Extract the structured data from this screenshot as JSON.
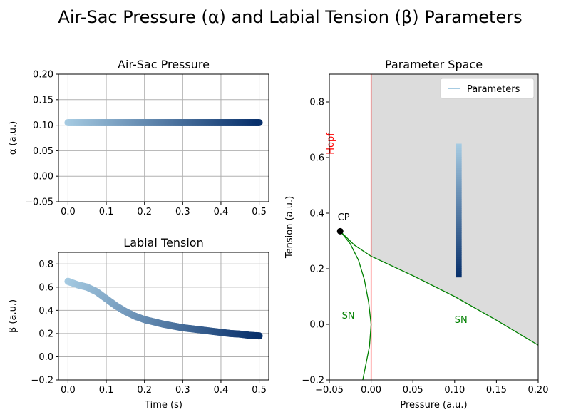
{
  "title": "Air-Sac Pressure (α) and Labial Tension (β) Parameters",
  "colors": {
    "light_blue": "#a6cbe2",
    "dark_blue": "#08306b",
    "hopf": "#ff0000",
    "sn": "#008000",
    "region": "#dcdcdc",
    "grid": "#b0b0b0"
  },
  "chart_data": [
    {
      "type": "scatter",
      "title": "Air-Sac Pressure",
      "xlabel": "",
      "ylabel": "α (a.u.)",
      "xlim": [
        -0.025,
        0.525
      ],
      "ylim": [
        -0.05,
        0.2
      ],
      "xticks": [
        0.0,
        0.1,
        0.2,
        0.3,
        0.4,
        0.5
      ],
      "xtick_labels": [
        "0.0",
        "0.1",
        "0.2",
        "0.3",
        "0.4",
        "0.5"
      ],
      "yticks": [
        -0.05,
        0.0,
        0.05,
        0.1,
        0.15,
        0.2
      ],
      "ytick_labels": [
        "−0.05",
        "0.00",
        "0.05",
        "0.10",
        "0.15",
        "0.20"
      ],
      "grid": true,
      "colormap": "Blues",
      "x": [
        0.0,
        0.025,
        0.05,
        0.075,
        0.1,
        0.125,
        0.15,
        0.175,
        0.2,
        0.225,
        0.25,
        0.275,
        0.3,
        0.325,
        0.35,
        0.375,
        0.4,
        0.425,
        0.45,
        0.475,
        0.5
      ],
      "y": [
        0.105,
        0.105,
        0.105,
        0.105,
        0.105,
        0.105,
        0.105,
        0.105,
        0.105,
        0.105,
        0.105,
        0.105,
        0.105,
        0.105,
        0.105,
        0.105,
        0.105,
        0.105,
        0.105,
        0.105,
        0.105
      ]
    },
    {
      "type": "scatter",
      "title": "Labial Tension",
      "xlabel": "Time (s)",
      "ylabel": "β (a.u.)",
      "xlim": [
        -0.025,
        0.525
      ],
      "ylim": [
        -0.2,
        0.9
      ],
      "xticks": [
        0.0,
        0.1,
        0.2,
        0.3,
        0.4,
        0.5
      ],
      "xtick_labels": [
        "0.0",
        "0.1",
        "0.2",
        "0.3",
        "0.4",
        "0.5"
      ],
      "yticks": [
        -0.2,
        0.0,
        0.2,
        0.4,
        0.6,
        0.8
      ],
      "ytick_labels": [
        "−0.2",
        "0.0",
        "0.2",
        "0.4",
        "0.6",
        "0.8"
      ],
      "grid": true,
      "colormap": "Blues",
      "x": [
        0.0,
        0.025,
        0.05,
        0.075,
        0.1,
        0.125,
        0.15,
        0.175,
        0.2,
        0.225,
        0.25,
        0.275,
        0.3,
        0.325,
        0.35,
        0.375,
        0.4,
        0.425,
        0.45,
        0.475,
        0.5
      ],
      "y": [
        0.65,
        0.62,
        0.6,
        0.56,
        0.5,
        0.44,
        0.39,
        0.35,
        0.32,
        0.3,
        0.28,
        0.265,
        0.25,
        0.24,
        0.23,
        0.22,
        0.21,
        0.2,
        0.195,
        0.185,
        0.18
      ]
    },
    {
      "type": "line",
      "title": "Parameter Space",
      "xlabel": "Pressure (a.u.)",
      "ylabel": "Tension (a.u.)",
      "xlim": [
        -0.05,
        0.2
      ],
      "ylim": [
        -0.2,
        0.9
      ],
      "xticks": [
        -0.05,
        0.0,
        0.05,
        0.1,
        0.15,
        0.2
      ],
      "xtick_labels": [
        "−0.05",
        "0.00",
        "0.05",
        "0.10",
        "0.15",
        "0.20"
      ],
      "yticks": [
        -0.2,
        0.0,
        0.2,
        0.4,
        0.6,
        0.8
      ],
      "ytick_labels": [
        "−0.2",
        "0.0",
        "0.2",
        "0.4",
        "0.6",
        "0.8"
      ],
      "grid": false,
      "legend": {
        "placement": "upper-right",
        "entries": [
          "Parameters"
        ]
      },
      "hopf_line_x": 0.0,
      "region": {
        "x_from": 0.0,
        "x_to": 0.2,
        "upper_bound": "sn_upper"
      },
      "cusp_point": {
        "x": -0.037,
        "y": 0.335,
        "label": "CP"
      },
      "sn_upper": {
        "x": [
          -0.037,
          -0.02,
          0.0,
          0.05,
          0.1,
          0.15,
          0.2
        ],
        "y": [
          0.335,
          0.285,
          0.245,
          0.175,
          0.1,
          0.015,
          -0.075
        ]
      },
      "sn_lower": {
        "x": [
          -0.037,
          -0.025,
          -0.015,
          -0.008,
          -0.003,
          0.0,
          -0.002,
          -0.006,
          -0.01
        ],
        "y": [
          0.335,
          0.29,
          0.23,
          0.16,
          0.08,
          0.0,
          -0.08,
          -0.14,
          -0.2
        ]
      },
      "parameters": {
        "name": "Parameters",
        "x": [
          0.105,
          0.105,
          0.105,
          0.105,
          0.105,
          0.105,
          0.105,
          0.105,
          0.105,
          0.105,
          0.105
        ],
        "y": [
          0.65,
          0.6,
          0.55,
          0.5,
          0.45,
          0.4,
          0.35,
          0.3,
          0.25,
          0.2,
          0.17
        ]
      },
      "annotations": [
        {
          "text": "Hopf",
          "x": -0.045,
          "y": 0.65,
          "color": "#ff0000",
          "rotation": -90
        },
        {
          "text": "CP",
          "x": -0.04,
          "y": 0.375
        },
        {
          "text": "SN",
          "x": -0.035,
          "y": 0.02,
          "color": "#008000"
        },
        {
          "text": "SN",
          "x": 0.1,
          "y": 0.005,
          "color": "#008000"
        }
      ]
    }
  ]
}
